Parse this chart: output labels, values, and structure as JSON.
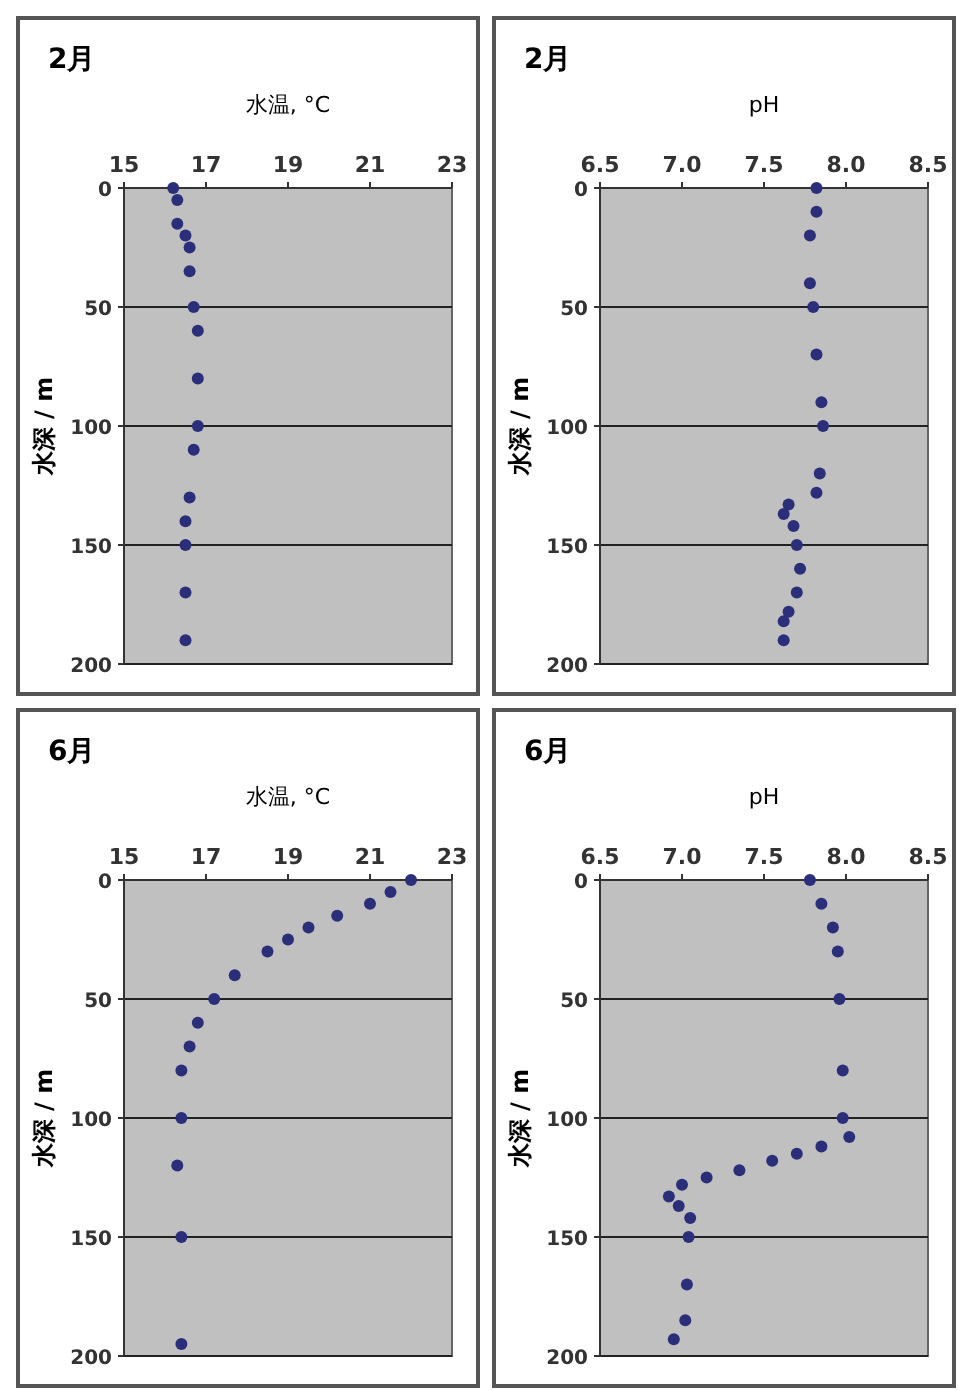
{
  "chart_data": [
    {
      "type": "scatter",
      "title": "2月",
      "xlabel": "水温, °C",
      "ylabel": "水深 / m",
      "xlim": [
        15,
        23
      ],
      "xticks": [
        15,
        17,
        19,
        21,
        23
      ],
      "ylim": [
        200,
        0
      ],
      "yticks": [
        0,
        50,
        100,
        150,
        200
      ],
      "grid": "y",
      "marker": "circle",
      "series": [
        {
          "color": "#2b2f7a",
          "x": [
            16.2,
            16.3,
            16.3,
            16.5,
            16.6,
            16.6,
            16.7,
            16.8,
            16.8,
            16.8,
            16.7,
            16.6,
            16.5,
            16.5,
            16.5,
            16.5
          ],
          "values": [
            0,
            5,
            15,
            20,
            25,
            35,
            50,
            60,
            80,
            100,
            110,
            130,
            140,
            150,
            170,
            190
          ]
        }
      ]
    },
    {
      "type": "scatter",
      "title": "2月",
      "xlabel": "pH",
      "ylabel": "水深 / m",
      "xlim": [
        6.5,
        8.5
      ],
      "xticks": [
        {
          "value": 6.5,
          "label": "6.5"
        },
        {
          "value": 7,
          "label": "7.0"
        },
        {
          "value": 7.5,
          "label": "7.5"
        },
        {
          "value": 8,
          "label": "8.0"
        },
        {
          "value": 8.5,
          "label": "8.5"
        }
      ],
      "ylim": [
        200,
        0
      ],
      "yticks": [
        0,
        50,
        100,
        150,
        200
      ],
      "grid": "y",
      "marker": "circle",
      "series": [
        {
          "color": "#2b2f7a",
          "x": [
            7.82,
            7.82,
            7.78,
            7.78,
            7.8,
            7.82,
            7.85,
            7.86,
            7.84,
            7.82,
            7.65,
            7.62,
            7.68,
            7.7,
            7.72,
            7.7,
            7.65,
            7.62,
            7.62
          ],
          "values": [
            0,
            10,
            20,
            40,
            50,
            70,
            90,
            100,
            120,
            128,
            133,
            137,
            142,
            150,
            160,
            170,
            178,
            182,
            190
          ]
        }
      ]
    },
    {
      "type": "scatter",
      "title": "6月",
      "xlabel": "水温, °C",
      "ylabel": "水深 / m",
      "xlim": [
        15,
        23
      ],
      "xticks": [
        15,
        17,
        19,
        21,
        23
      ],
      "ylim": [
        200,
        0
      ],
      "yticks": [
        0,
        50,
        100,
        150,
        200
      ],
      "grid": "y",
      "marker": "circle",
      "series": [
        {
          "color": "#2b2f7a",
          "x": [
            22.0,
            21.5,
            21.0,
            20.2,
            19.5,
            19.0,
            18.5,
            17.7,
            17.2,
            16.8,
            16.6,
            16.4,
            16.4,
            16.3,
            16.4,
            16.4
          ],
          "values": [
            0,
            5,
            10,
            15,
            20,
            25,
            30,
            40,
            50,
            60,
            70,
            80,
            100,
            120,
            150,
            195
          ]
        }
      ]
    },
    {
      "type": "scatter",
      "title": "6月",
      "xlabel": "pH",
      "ylabel": "水深 / m",
      "xlim": [
        6.5,
        8.5
      ],
      "xticks": [
        {
          "value": 6.5,
          "label": "6.5"
        },
        {
          "value": 7,
          "label": "7.0"
        },
        {
          "value": 7.5,
          "label": "7.5"
        },
        {
          "value": 8,
          "label": "8.0"
        },
        {
          "value": 8.5,
          "label": "8.5"
        }
      ],
      "ylim": [
        200,
        0
      ],
      "yticks": [
        0,
        50,
        100,
        150,
        200
      ],
      "grid": "y",
      "marker": "circle",
      "series": [
        {
          "color": "#2b2f7a",
          "x": [
            7.78,
            7.85,
            7.92,
            7.95,
            7.96,
            7.98,
            7.98,
            8.02,
            7.85,
            7.7,
            7.55,
            7.35,
            7.15,
            7.0,
            6.92,
            6.98,
            7.05,
            7.04,
            7.03,
            7.02,
            6.95
          ],
          "values": [
            0,
            10,
            20,
            30,
            50,
            80,
            100,
            108,
            112,
            115,
            118,
            122,
            125,
            128,
            133,
            137,
            142,
            150,
            170,
            185,
            193
          ]
        }
      ]
    }
  ]
}
